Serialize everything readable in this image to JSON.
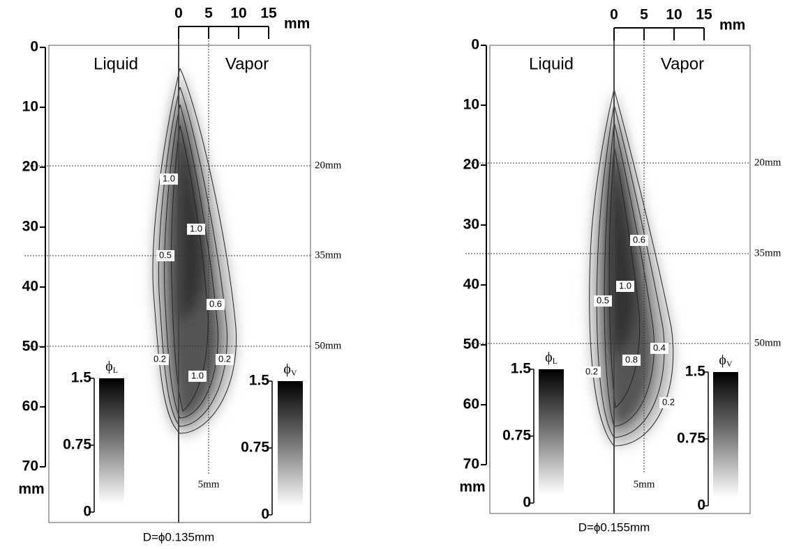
{
  "panels": [
    {
      "y_axis": {
        "ticks": [
          "0",
          "10",
          "20",
          "30",
          "40",
          "50",
          "60",
          "70"
        ],
        "unit": "mm"
      },
      "top_scale": {
        "ticks": [
          "0",
          "5",
          "10",
          "15"
        ],
        "unit": "mm"
      },
      "regions": [
        "Liquid",
        "Vapor"
      ],
      "guides": [
        "20mm",
        "35mm",
        "50mm"
      ],
      "vertical_guide": "5mm",
      "contour_labels": [
        "1.0",
        "1.0",
        "0.5",
        "0.6",
        "0.2",
        "0.2",
        "1.0"
      ],
      "colorbars": [
        {
          "symbol": "ϕ",
          "subscript": "L",
          "ticks": [
            "1.5",
            "0.75",
            "0"
          ]
        },
        {
          "symbol": "ϕ",
          "subscript": "V",
          "ticks": [
            "1.5",
            "0.75",
            "0"
          ]
        }
      ],
      "caption": "D=ϕ0.135mm"
    },
    {
      "y_axis": {
        "ticks": [
          "0",
          "10",
          "20",
          "30",
          "40",
          "50",
          "60",
          "70"
        ],
        "unit": "mm"
      },
      "top_scale": {
        "ticks": [
          "0",
          "5",
          "10",
          "15"
        ],
        "unit": "mm"
      },
      "regions": [
        "Liquid",
        "Vapor"
      ],
      "guides": [
        "20mm",
        "35mm",
        "50mm"
      ],
      "vertical_guide": "5mm",
      "contour_labels": [
        "0.6",
        "1.0",
        "0.5",
        "0.4",
        "0.8",
        "0.2",
        "0.2"
      ],
      "colorbars": [
        {
          "symbol": "ϕ",
          "subscript": "L",
          "ticks": [
            "1.5",
            "0.75",
            "0"
          ]
        },
        {
          "symbol": "ϕ",
          "subscript": "V",
          "ticks": [
            "1.5",
            "0.75",
            "0"
          ]
        }
      ],
      "caption": "D=ϕ0.155mm"
    }
  ]
}
